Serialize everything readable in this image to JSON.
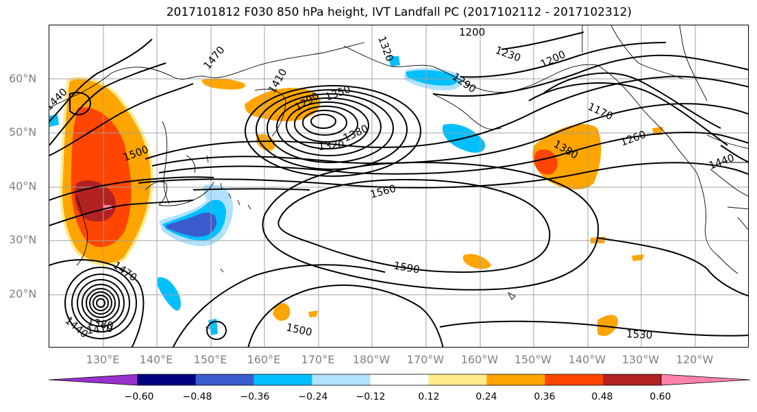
{
  "title": "2017101812 F030 850 hPa height, IVT Landfall PC (2017102112 - 2017102312)",
  "latitude_labels": [
    "60°N",
    "50°N",
    "40°N",
    "30°N",
    "20°N"
  ],
  "longitude_labels": [
    "130°E",
    "140°E",
    "150°E",
    "160°E",
    "170°E",
    "180°W",
    "170°W",
    "160°W",
    "150°W",
    "140°W",
    "130°W",
    "120°W"
  ],
  "contour_labels": [
    "1200",
    "1230",
    "1290",
    "1200",
    "1170",
    "1260",
    "1440",
    "1350",
    "1290",
    "1320",
    "1380",
    "1500",
    "1560",
    "1590",
    "1470",
    "1440",
    "1380",
    "1410",
    "1500",
    "1530",
    "1470",
    "1440",
    "1410",
    "1380",
    "1320"
  ],
  "colorbar": {
    "ticks": [
      "−0.60",
      "−0.48",
      "−0.36",
      "−0.24",
      "−0.12",
      "0.12",
      "0.24",
      "0.36",
      "0.48",
      "0.60"
    ],
    "colors": [
      "#9932cc",
      "#000080",
      "#3a5bcd",
      "#00bfff",
      "#b0e2ff",
      "#ffffff",
      "#ffec8b",
      "#ffa500",
      "#ff4500",
      "#b22222",
      "#ff82ab"
    ]
  },
  "colors": {
    "grid": "#a0a0a0",
    "contour": "#000000",
    "coast": "#000000",
    "axis_text": "#808080"
  }
}
